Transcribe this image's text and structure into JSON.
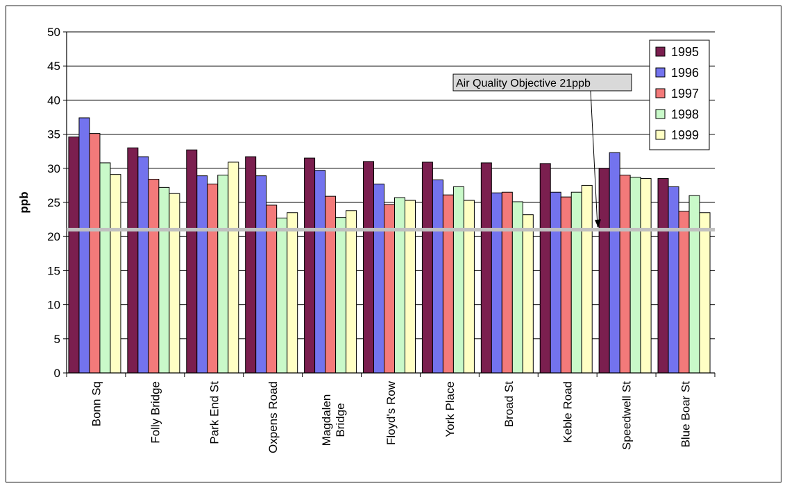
{
  "chart_data": {
    "type": "bar",
    "title": "",
    "xlabel": "",
    "ylabel": "ppb",
    "ylim": [
      0,
      50
    ],
    "yticks": [
      0,
      5,
      10,
      15,
      20,
      25,
      30,
      35,
      40,
      45,
      50
    ],
    "grid": true,
    "legend_position": "top-right",
    "categories": [
      "Bonn Sq",
      "Folly Bridge",
      "Park End St",
      "Oxpens Road",
      "Magdalen Bridge",
      "Floyd's Row",
      "York Place",
      "Broad St",
      "Keble Road",
      "Speedwell  St",
      "Blue Boar St"
    ],
    "series": [
      {
        "name": "1995",
        "color": "#7b1f4f",
        "values": [
          34.6,
          33.0,
          32.7,
          31.7,
          31.5,
          31.0,
          30.9,
          30.8,
          30.7,
          30.0,
          28.5
        ]
      },
      {
        "name": "1996",
        "color": "#7373ee",
        "values": [
          37.4,
          31.7,
          28.9,
          28.9,
          29.7,
          27.7,
          28.3,
          26.4,
          26.5,
          32.3,
          27.3
        ]
      },
      {
        "name": "1997",
        "color": "#f37a7a",
        "values": [
          35.1,
          28.4,
          27.7,
          24.6,
          25.9,
          24.7,
          26.1,
          26.5,
          25.8,
          29.0,
          23.7
        ]
      },
      {
        "name": "1998",
        "color": "#c9f9c9",
        "values": [
          30.8,
          27.2,
          29.0,
          22.7,
          22.8,
          25.7,
          27.3,
          25.1,
          26.5,
          28.7,
          26.0
        ]
      },
      {
        "name": "1999",
        "color": "#ffffc4",
        "values": [
          29.1,
          26.3,
          30.9,
          23.5,
          23.8,
          25.3,
          25.3,
          23.2,
          27.5,
          28.5,
          23.5
        ]
      }
    ],
    "objective": {
      "value": 21,
      "label": "Air Quality Objective 21ppb",
      "color": "#c0c0c0"
    }
  }
}
